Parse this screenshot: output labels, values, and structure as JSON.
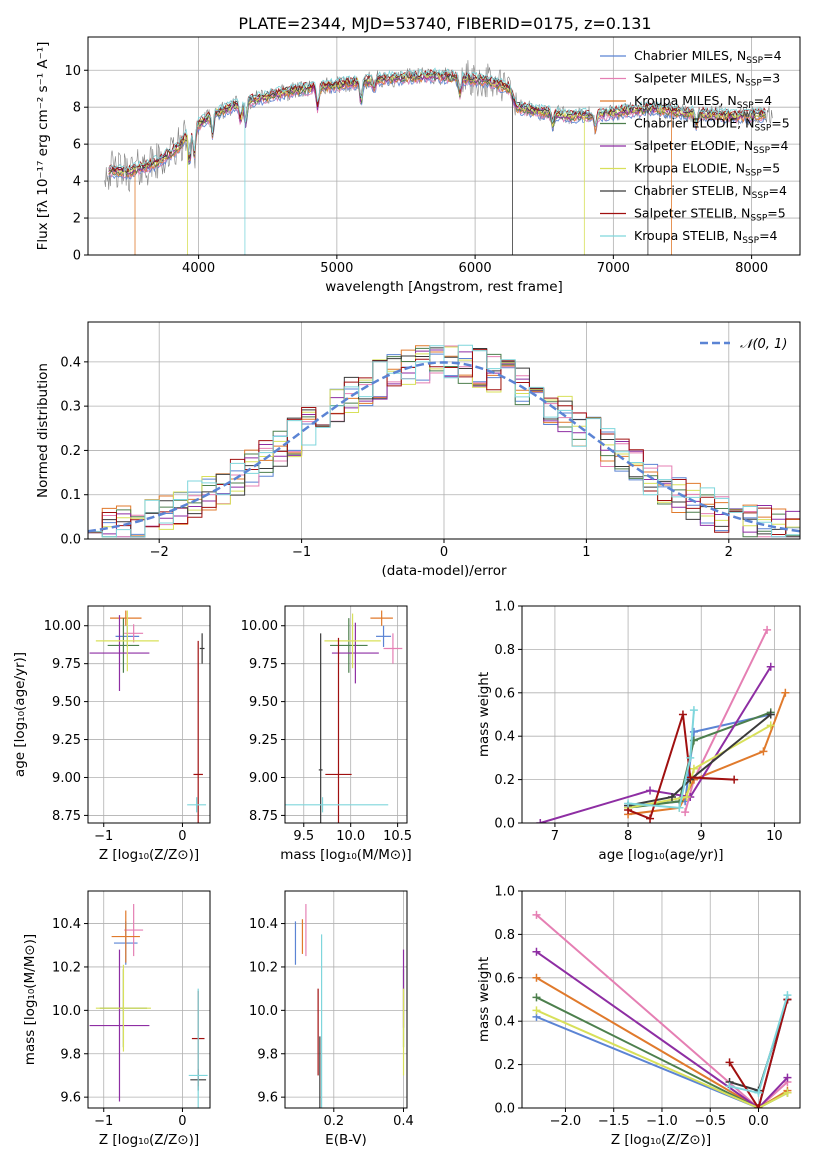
{
  "figure_title": "PLATE=2344, MJD=53740, FIBERID=0175, z=0.131",
  "colors": {
    "Chabrier MILES": "#5b84d4",
    "Salpeter MILES": "#e57fb3",
    "Kroupa MILES": "#e07a2c",
    "Chabrier ELODIE": "#4d7f4d",
    "Salpeter ELODIE": "#8e2ea3",
    "Kroupa ELODIE": "#d8e05a",
    "Chabrier STELIB": "#3a3a3a",
    "Salpeter STELIB": "#a01010",
    "Kroupa STELIB": "#7fd6dc",
    "data": "#808080",
    "normal": "#5b84d4"
  },
  "chart_data": [
    {
      "id": "spectrum",
      "type": "line",
      "title": "PLATE=2344, MJD=53740, FIBERID=0175, z=0.131",
      "xlabel": "wavelength [Angstrom, rest frame]",
      "ylabel": "Flux [fλ 10⁻¹⁷ erg cm⁻² s⁻¹ A⁻¹]",
      "xlim": [
        3200,
        8350
      ],
      "ylim": [
        0,
        11.8
      ],
      "xticks": [
        4000,
        5000,
        6000,
        7000,
        8000
      ],
      "yticks": [
        0,
        2,
        4,
        6,
        8,
        10
      ],
      "grid": true,
      "legend_position": "top-right",
      "legend": [
        {
          "label": "Chabrier MILES, N_SSP=4",
          "name": "Chabrier MILES",
          "nssp": "4"
        },
        {
          "label": "Salpeter MILES, N_SSP=3",
          "name": "Salpeter MILES",
          "nssp": "3"
        },
        {
          "label": "Kroupa MILES, N_SSP=4",
          "name": "Kroupa MILES",
          "nssp": "4"
        },
        {
          "label": "Chabrier ELODIE, N_SSP=5",
          "name": "Chabrier ELODIE",
          "nssp": "5"
        },
        {
          "label": "Salpeter ELODIE, N_SSP=4",
          "name": "Salpeter ELODIE",
          "nssp": "4"
        },
        {
          "label": "Kroupa ELODIE, N_SSP=5",
          "name": "Kroupa ELODIE",
          "nssp": "5"
        },
        {
          "label": "Chabrier STELIB, N_SSP=4",
          "name": "Chabrier STELIB",
          "nssp": "4"
        },
        {
          "label": "Salpeter STELIB, N_SSP=5",
          "name": "Salpeter STELIB",
          "nssp": "5"
        },
        {
          "label": "Kroupa STELIB, N_SSP=4",
          "name": "Kroupa STELIB",
          "nssp": "4"
        }
      ],
      "continuum_x": [
        3300,
        3500,
        3700,
        3850,
        3950,
        4100,
        4300,
        4500,
        4700,
        4900,
        5100,
        5300,
        5500,
        5700,
        5900,
        6100,
        6250,
        6300,
        6500,
        6700,
        6900,
        7100,
        7300,
        7500,
        7700,
        7900,
        8100
      ],
      "continuum_y": [
        4.6,
        4.5,
        5.0,
        5.8,
        6.8,
        7.6,
        8.2,
        8.6,
        8.9,
        9.1,
        9.3,
        9.5,
        9.6,
        9.7,
        9.6,
        9.4,
        9.0,
        8.0,
        7.7,
        7.5,
        7.6,
        7.8,
        7.9,
        7.7,
        7.6,
        7.5,
        7.6
      ]
    },
    {
      "id": "residuals",
      "type": "histogram",
      "xlabel": "(data-model)/error",
      "ylabel": "Normed distribution",
      "xlim": [
        -2.5,
        2.5
      ],
      "ylim": [
        0,
        0.49
      ],
      "xticks": [
        -2,
        -1,
        0,
        1,
        2
      ],
      "yticks": [
        0.0,
        0.1,
        0.2,
        0.3,
        0.4
      ],
      "grid": true,
      "legend_position": "top-right",
      "legend": [
        {
          "label": "𝒩(0, 1)"
        }
      ],
      "bin_width": 0.1
    },
    {
      "id": "age_vs_Z",
      "type": "scatter",
      "xlabel": "Z [log₁₀(Z/Z⊙)]",
      "ylabel": "age  [log₁₀(age/yr)]",
      "xlim": [
        -1.2,
        0.35
      ],
      "ylim": [
        8.7,
        10.13
      ],
      "xticks": [
        -1,
        0
      ],
      "yticks": [
        8.75,
        9.0,
        9.25,
        9.5,
        9.75,
        10.0
      ],
      "grid": true,
      "points": [
        {
          "model": "Chabrier MILES",
          "x": -0.7,
          "xerr": 0.15,
          "y": 9.93,
          "yerr": 0.07
        },
        {
          "model": "Salpeter MILES",
          "x": -0.62,
          "xerr": 0.12,
          "y": 9.95,
          "yerr": 0.06
        },
        {
          "model": "Kroupa MILES",
          "x": -0.72,
          "xerr": 0.2,
          "y": 10.05,
          "yerr": 0.05
        },
        {
          "model": "Chabrier ELODIE",
          "x": -0.75,
          "xerr": 0.2,
          "y": 9.87,
          "yerr": 0.18
        },
        {
          "model": "Salpeter ELODIE",
          "x": -0.8,
          "xerr": 0.38,
          "y": 9.82,
          "yerr": 0.25
        },
        {
          "model": "Kroupa ELODIE",
          "x": -0.7,
          "xerr": 0.4,
          "y": 9.9,
          "yerr": 0.2
        },
        {
          "model": "Chabrier STELIB",
          "x": 0.25,
          "xerr": 0.03,
          "y": 9.85,
          "yerr": 0.1
        },
        {
          "model": "Salpeter STELIB",
          "x": 0.2,
          "xerr": 0.06,
          "y": 9.02,
          "yerr": 0.88
        },
        {
          "model": "Kroupa STELIB",
          "x": 0.18,
          "xerr": 0.12,
          "y": 8.82,
          "yerr": 0.05
        }
      ]
    },
    {
      "id": "age_vs_mass",
      "type": "scatter",
      "xlabel": "mass [log₁₀(M/M⊙)]",
      "xlim": [
        9.3,
        10.6
      ],
      "ylim": [
        8.7,
        10.13
      ],
      "xticks": [
        9.5,
        10.0,
        10.5
      ],
      "yticks": [
        8.75,
        9.0,
        9.25,
        9.5,
        9.75,
        10.0
      ],
      "grid": true,
      "points": [
        {
          "model": "Chabrier MILES",
          "x": 10.35,
          "xerr": 0.08,
          "y": 9.93,
          "yerr": 0.07
        },
        {
          "model": "Salpeter MILES",
          "x": 10.45,
          "xerr": 0.1,
          "y": 9.85,
          "yerr": 0.1
        },
        {
          "model": "Kroupa MILES",
          "x": 10.33,
          "xerr": 0.12,
          "y": 10.05,
          "yerr": 0.05
        },
        {
          "model": "Chabrier ELODIE",
          "x": 9.98,
          "xerr": 0.2,
          "y": 9.87,
          "yerr": 0.18
        },
        {
          "model": "Salpeter ELODIE",
          "x": 10.05,
          "xerr": 0.25,
          "y": 9.82,
          "yerr": 0.2
        },
        {
          "model": "Kroupa ELODIE",
          "x": 10.02,
          "xerr": 0.3,
          "y": 9.9,
          "yerr": 0.18
        },
        {
          "model": "Chabrier STELIB",
          "x": 9.68,
          "xerr": 0.02,
          "y": 9.05,
          "yerr": 0.9
        },
        {
          "model": "Salpeter STELIB",
          "x": 9.87,
          "xerr": 0.14,
          "y": 9.02,
          "yerr": 0.9
        },
        {
          "model": "Kroupa STELIB",
          "x": 9.7,
          "xerr": 0.7,
          "y": 8.82,
          "yerr": 0.05
        }
      ]
    },
    {
      "id": "weight_vs_age",
      "type": "line",
      "xlabel": "age  [log₁₀(age/yr)]",
      "ylabel": "mass weight",
      "xlim": [
        6.55,
        10.35
      ],
      "ylim": [
        0,
        1.0
      ],
      "xticks": [
        7,
        8,
        9,
        10
      ],
      "yticks": [
        0.0,
        0.2,
        0.4,
        0.6,
        0.8,
        1.0
      ],
      "grid": true,
      "series": [
        {
          "model": "Chabrier MILES",
          "x": [
            8.0,
            8.78,
            8.9,
            9.95
          ],
          "y": [
            0.08,
            0.1,
            0.42,
            0.5
          ]
        },
        {
          "model": "Salpeter MILES",
          "x": [
            8.78,
            8.9,
            9.9
          ],
          "y": [
            0.05,
            0.2,
            0.89
          ]
        },
        {
          "model": "Kroupa MILES",
          "x": [
            8.0,
            8.7,
            8.9,
            9.85,
            10.15
          ],
          "y": [
            0.04,
            0.07,
            0.2,
            0.33,
            0.6
          ]
        },
        {
          "model": "Chabrier ELODIE",
          "x": [
            8.0,
            8.7,
            8.9,
            9.95
          ],
          "y": [
            0.07,
            0.1,
            0.38,
            0.51
          ]
        },
        {
          "model": "Salpeter ELODIE",
          "x": [
            6.8,
            8.3,
            8.85,
            9.95
          ],
          "y": [
            0.0,
            0.15,
            0.12,
            0.72
          ]
        },
        {
          "model": "Kroupa ELODIE",
          "x": [
            8.0,
            8.8,
            8.9,
            9.95
          ],
          "y": [
            0.07,
            0.12,
            0.25,
            0.45
          ]
        },
        {
          "model": "Chabrier STELIB",
          "x": [
            8.0,
            8.6,
            8.85,
            9.95
          ],
          "y": [
            0.08,
            0.12,
            0.2,
            0.5
          ]
        },
        {
          "model": "Salpeter STELIB",
          "x": [
            8.0,
            8.3,
            8.75,
            8.85,
            9.45
          ],
          "y": [
            0.06,
            0.02,
            0.5,
            0.21,
            0.2
          ]
        },
        {
          "model": "Kroupa STELIB",
          "x": [
            8.0,
            8.7,
            8.85,
            8.9
          ],
          "y": [
            0.09,
            0.07,
            0.3,
            0.52
          ]
        }
      ]
    },
    {
      "id": "mass_vs_Z",
      "type": "scatter",
      "xlabel": "Z [log₁₀(Z/Z⊙)]",
      "ylabel": "mass [log₁₀(M/M⊙)]",
      "xlim": [
        -1.2,
        0.35
      ],
      "ylim": [
        9.55,
        10.55
      ],
      "xticks": [
        -1,
        0
      ],
      "yticks": [
        9.6,
        9.8,
        10.0,
        10.2,
        10.4
      ],
      "grid": true,
      "points": [
        {
          "model": "Chabrier MILES",
          "x": -0.72,
          "xerr": 0.15,
          "y": 10.31,
          "yerr": 0.1
        },
        {
          "model": "Salpeter MILES",
          "x": -0.62,
          "xerr": 0.12,
          "y": 10.37,
          "yerr": 0.12
        },
        {
          "model": "Kroupa MILES",
          "x": -0.72,
          "xerr": 0.18,
          "y": 10.34,
          "yerr": 0.12
        },
        {
          "model": "Chabrier ELODIE",
          "x": -0.75,
          "xerr": 0.3,
          "y": 10.01,
          "yerr": 0.18
        },
        {
          "model": "Salpeter ELODIE",
          "x": -0.8,
          "xerr": 0.38,
          "y": 9.93,
          "yerr": 0.35
        },
        {
          "model": "Kroupa ELODIE",
          "x": -0.75,
          "xerr": 0.35,
          "y": 10.01,
          "yerr": 0.2
        },
        {
          "model": "Chabrier STELIB",
          "x": 0.2,
          "xerr": 0.1,
          "y": 9.68,
          "yerr": 0.05
        },
        {
          "model": "Salpeter STELIB",
          "x": 0.2,
          "xerr": 0.08,
          "y": 9.87,
          "yerr": 0.22
        },
        {
          "model": "Kroupa STELIB",
          "x": 0.2,
          "xerr": 0.12,
          "y": 9.7,
          "yerr": 0.4
        }
      ]
    },
    {
      "id": "mass_vs_ebv",
      "type": "scatter",
      "xlabel": "E(B-V)",
      "xlim": [
        0.06,
        0.41
      ],
      "ylim": [
        9.55,
        10.55
      ],
      "xticks": [
        0.2,
        0.4
      ],
      "yticks": [
        9.6,
        9.8,
        10.0,
        10.2,
        10.4
      ],
      "grid": true,
      "points": [
        {
          "model": "Chabrier MILES",
          "x": 0.09,
          "xerr": 0.0,
          "y": 10.31,
          "yerr": 0.1
        },
        {
          "model": "Salpeter MILES",
          "x": 0.12,
          "xerr": 0.0,
          "y": 10.37,
          "yerr": 0.12
        },
        {
          "model": "Kroupa MILES",
          "x": 0.11,
          "xerr": 0.0,
          "y": 10.34,
          "yerr": 0.08
        },
        {
          "model": "Chabrier ELODIE",
          "x": 0.4,
          "xerr": 0.0,
          "y": 10.01,
          "yerr": 0.18
        },
        {
          "model": "Salpeter ELODIE",
          "x": 0.4,
          "xerr": 0.0,
          "y": 10.1,
          "yerr": 0.18
        },
        {
          "model": "Kroupa ELODIE",
          "x": 0.4,
          "xerr": 0.0,
          "y": 9.9,
          "yerr": 0.2
        },
        {
          "model": "Chabrier STELIB",
          "x": 0.16,
          "xerr": 0.0,
          "y": 9.68,
          "yerr": 0.2
        },
        {
          "model": "Salpeter STELIB",
          "x": 0.155,
          "xerr": 0.0,
          "y": 9.9,
          "yerr": 0.2
        },
        {
          "model": "Kroupa STELIB",
          "x": 0.165,
          "xerr": 0.0,
          "y": 9.95,
          "yerr": 0.4
        }
      ]
    },
    {
      "id": "weight_vs_Z",
      "type": "line",
      "xlabel": "Z [log₁₀(Z/Z⊙)]",
      "ylabel": "mass weight",
      "xlim": [
        -2.45,
        0.43
      ],
      "ylim": [
        0,
        1.0
      ],
      "xticks": [
        -2.0,
        -1.5,
        -1.0,
        -0.5,
        0.0
      ],
      "yticks": [
        0.0,
        0.2,
        0.4,
        0.6,
        0.8,
        1.0
      ],
      "grid": true,
      "series": [
        {
          "model": "Chabrier MILES",
          "x": [
            -2.3,
            0.0,
            0.3
          ],
          "y": [
            0.42,
            0.0,
            0.5
          ]
        },
        {
          "model": "Salpeter MILES",
          "x": [
            -2.3,
            0.0,
            0.3
          ],
          "y": [
            0.89,
            0.0,
            0.12
          ]
        },
        {
          "model": "Kroupa MILES",
          "x": [
            -2.3,
            0.0,
            0.3
          ],
          "y": [
            0.6,
            0.0,
            0.08
          ]
        },
        {
          "model": "Chabrier ELODIE",
          "x": [
            -2.3,
            0.0,
            0.3
          ],
          "y": [
            0.51,
            0.0,
            0.07
          ]
        },
        {
          "model": "Salpeter ELODIE",
          "x": [
            -2.3,
            0.0,
            0.3
          ],
          "y": [
            0.72,
            0.0,
            0.14
          ]
        },
        {
          "model": "Kroupa ELODIE",
          "x": [
            -2.3,
            0.0,
            0.3
          ],
          "y": [
            0.45,
            0.0,
            0.07
          ]
        },
        {
          "model": "Chabrier STELIB",
          "x": [
            -0.3,
            0.0,
            0.3
          ],
          "y": [
            0.12,
            0.08,
            0.5
          ]
        },
        {
          "model": "Salpeter STELIB",
          "x": [
            -0.3,
            0.0,
            0.3
          ],
          "y": [
            0.21,
            0.0,
            0.5
          ]
        },
        {
          "model": "Kroupa STELIB",
          "x": [
            -0.3,
            0.0,
            0.3
          ],
          "y": [
            0.1,
            0.07,
            0.52
          ]
        }
      ]
    }
  ]
}
